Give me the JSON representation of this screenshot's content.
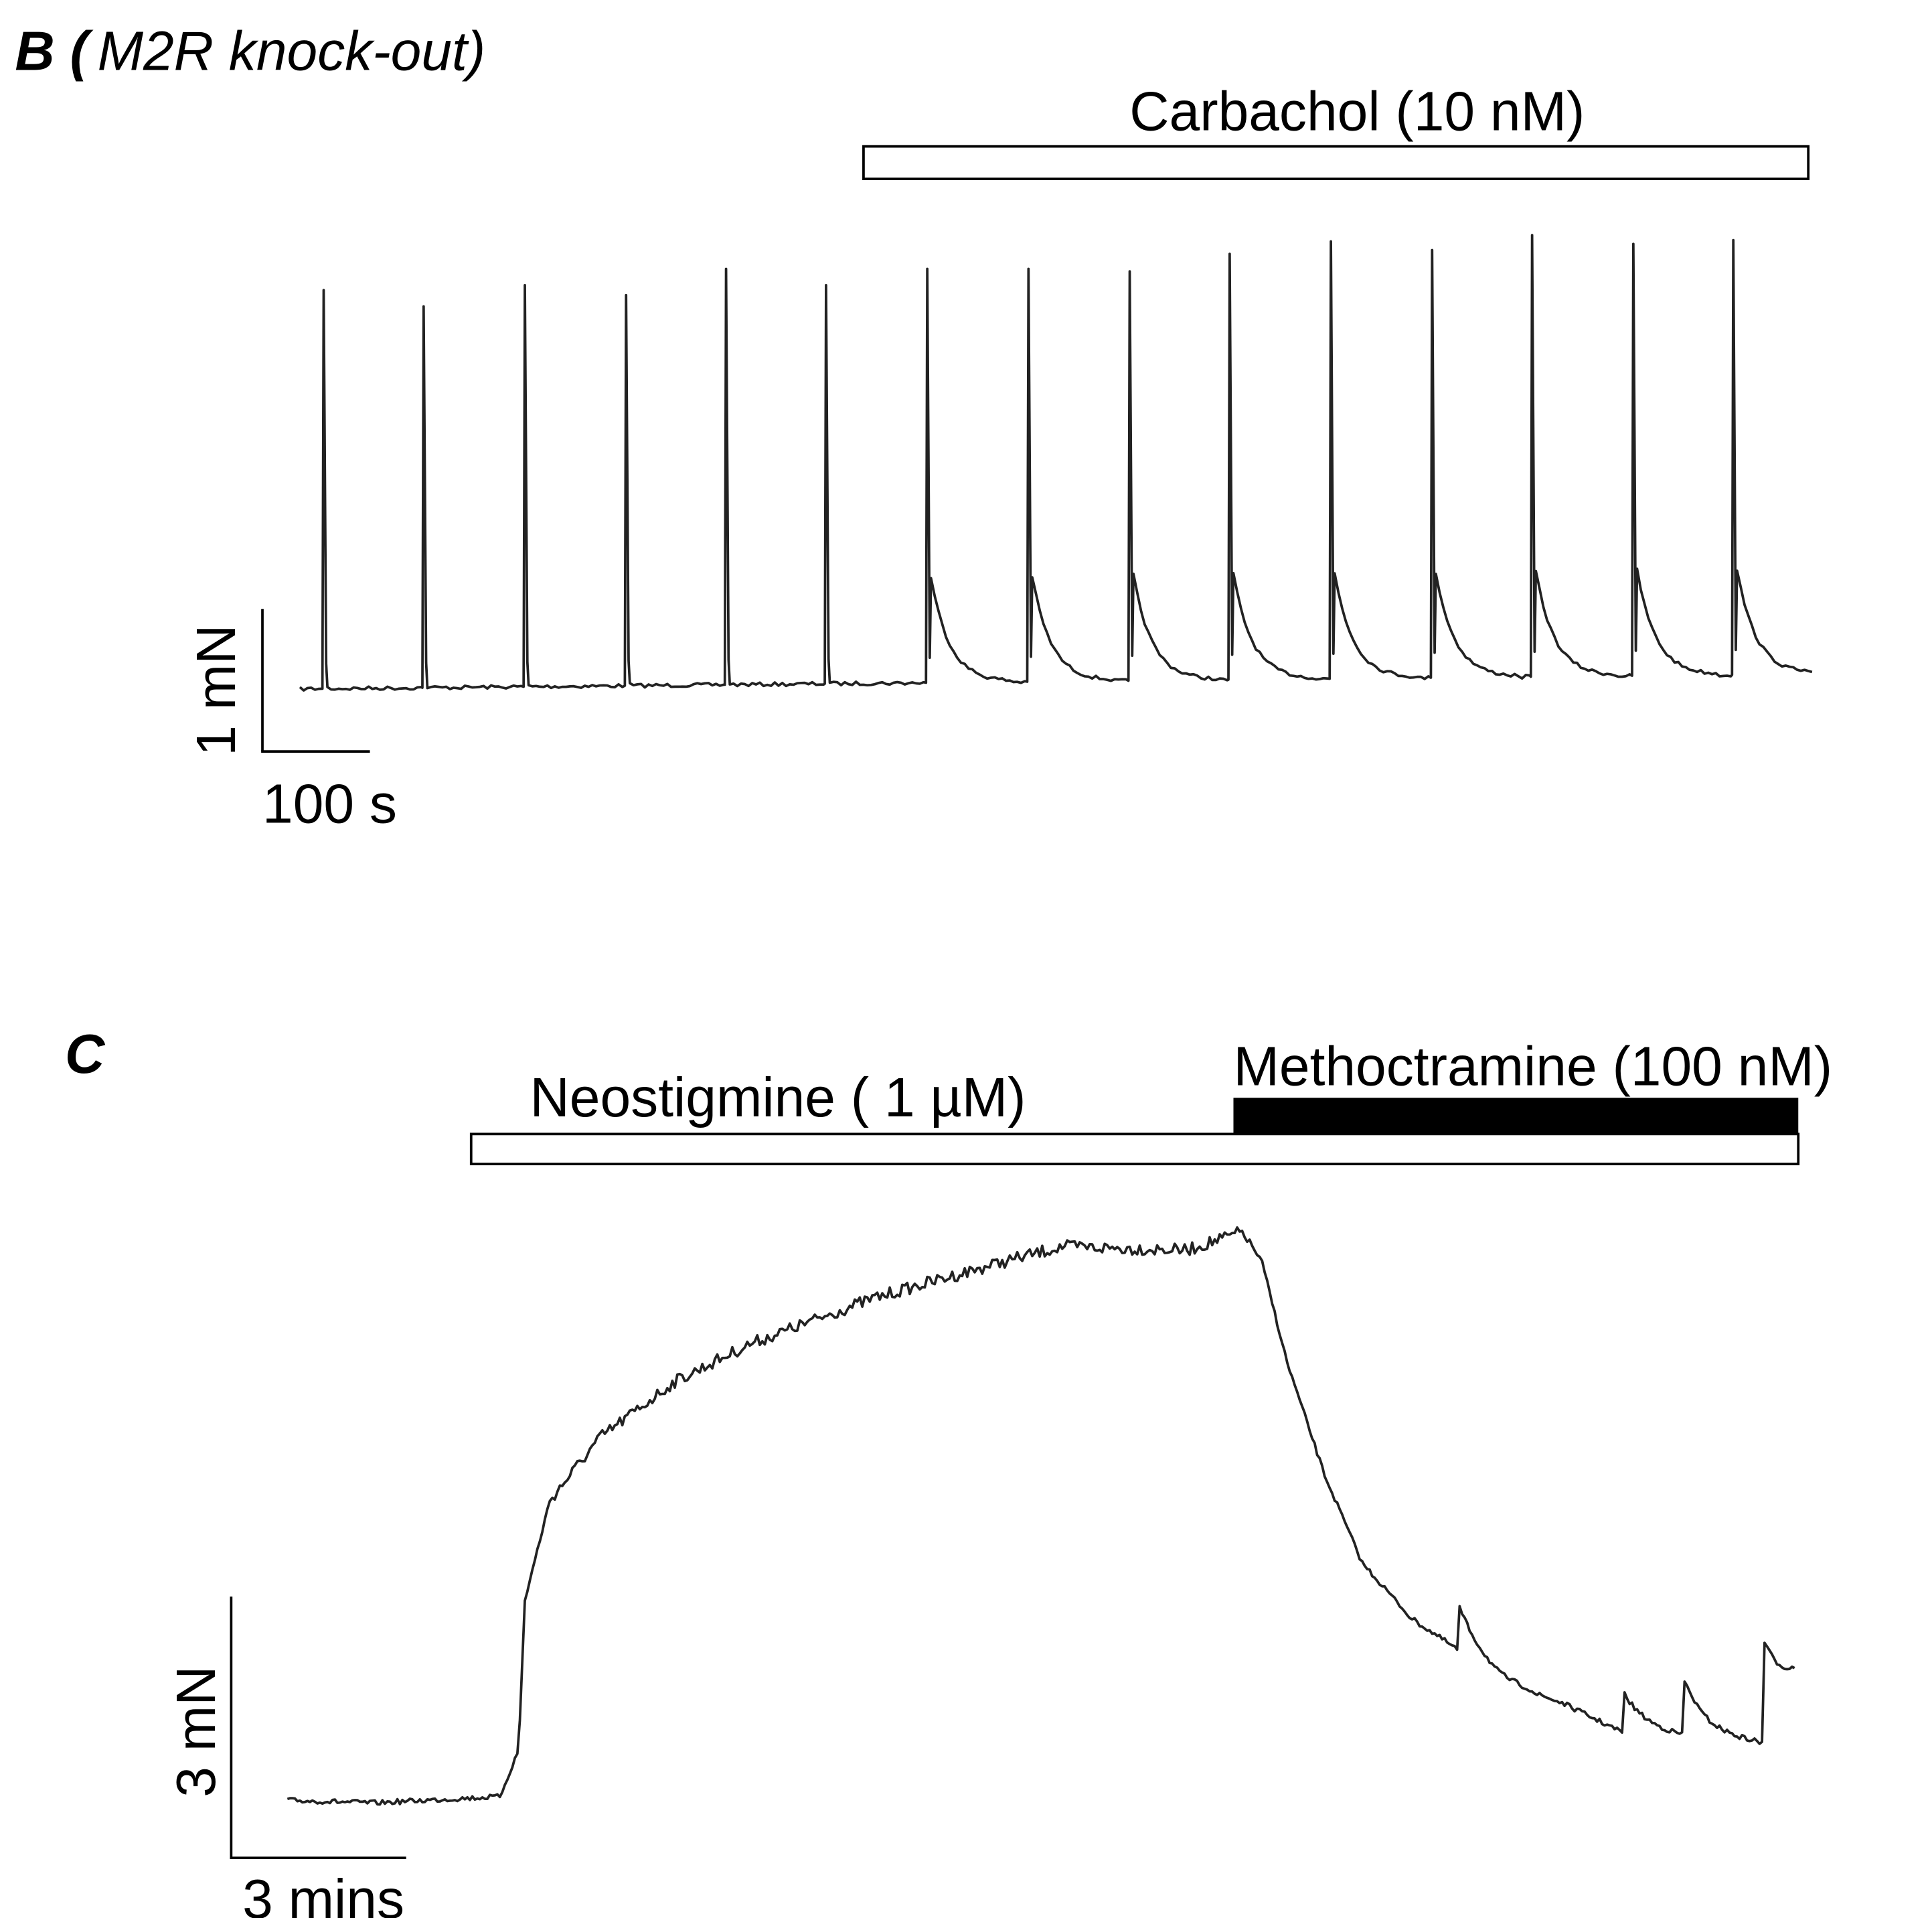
{
  "panel_b": {
    "label": "B (",
    "condition": "M2R knock-out)",
    "drug": "Carbachol (10 nM)",
    "scale_force": "1 mN",
    "scale_time": "100 s"
  },
  "panel_c": {
    "label": "C",
    "drug_1": "Neostigmine ( 1 µM)",
    "drug_2": "Methoctramine (100 nM)",
    "scale_force": "3 mN",
    "scale_time": "3 mins"
  }
}
